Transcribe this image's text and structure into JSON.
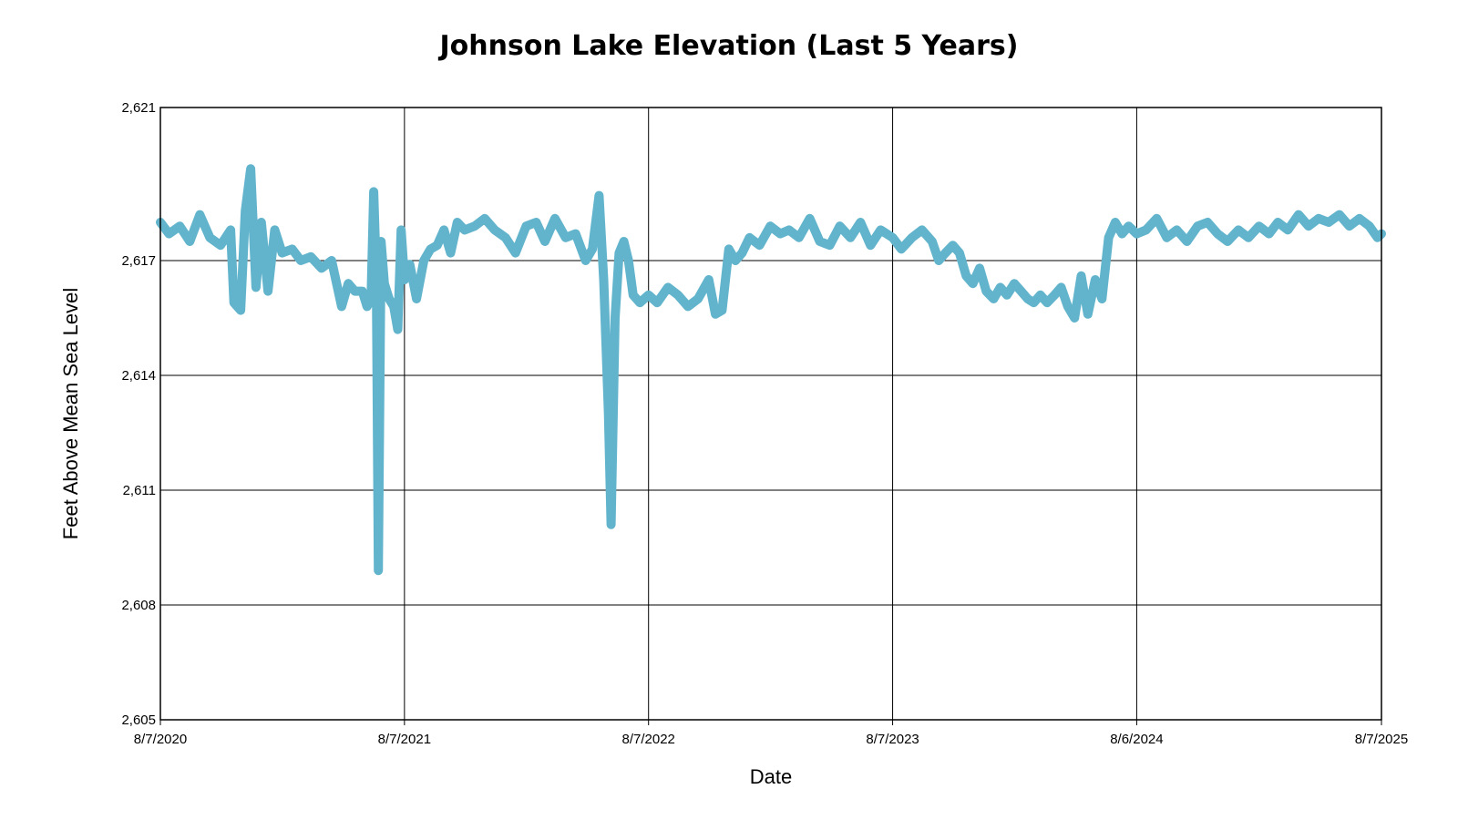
{
  "chart_data": {
    "type": "line",
    "title": "Johnson Lake Elevation (Last 5 Years)",
    "xlabel": "Date",
    "ylabel": "Feet Above Mean Sea Level",
    "xlim": [
      "2020-08-07",
      "2025-08-07"
    ],
    "ylim": [
      2605,
      2621
    ],
    "x_ticks": [
      {
        "date": "2020-08-07",
        "label": "8/7/2020"
      },
      {
        "date": "2021-08-07",
        "label": "8/7/2021"
      },
      {
        "date": "2022-08-07",
        "label": "8/7/2022"
      },
      {
        "date": "2023-08-07",
        "label": "8/7/2023"
      },
      {
        "date": "2024-08-06",
        "label": "8/6/2024"
      },
      {
        "date": "2025-08-07",
        "label": "8/7/2025"
      }
    ],
    "y_ticks": [
      {
        "value": 2605,
        "label": "2,605"
      },
      {
        "value": 2608,
        "label": "2,608"
      },
      {
        "value": 2611,
        "label": "2,611"
      },
      {
        "value": 2614,
        "label": "2,614"
      },
      {
        "value": 2617,
        "label": "2,617"
      },
      {
        "value": 2621,
        "label": "2,621"
      }
    ],
    "grid": true,
    "legend": "none",
    "series": [
      {
        "color": "#62b4cc",
        "points": [
          [
            "2020-08-07",
            2618.0
          ],
          [
            "2020-08-20",
            2617.7
          ],
          [
            "2020-09-05",
            2617.9
          ],
          [
            "2020-09-20",
            2617.5
          ],
          [
            "2020-10-05",
            2618.2
          ],
          [
            "2020-10-20",
            2617.6
          ],
          [
            "2020-11-05",
            2617.4
          ],
          [
            "2020-11-20",
            2617.8
          ],
          [
            "2020-11-25",
            2615.9
          ],
          [
            "2020-12-05",
            2615.7
          ],
          [
            "2020-12-12",
            2618.3
          ],
          [
            "2020-12-20",
            2619.4
          ],
          [
            "2020-12-28",
            2616.3
          ],
          [
            "2021-01-05",
            2618.0
          ],
          [
            "2021-01-15",
            2616.2
          ],
          [
            "2021-01-25",
            2617.8
          ],
          [
            "2021-02-05",
            2617.2
          ],
          [
            "2021-02-20",
            2617.3
          ],
          [
            "2021-03-05",
            2617.0
          ],
          [
            "2021-03-20",
            2617.1
          ],
          [
            "2021-04-05",
            2616.8
          ],
          [
            "2021-04-20",
            2617.0
          ],
          [
            "2021-05-05",
            2615.8
          ],
          [
            "2021-05-15",
            2616.4
          ],
          [
            "2021-05-25",
            2616.2
          ],
          [
            "2021-06-05",
            2616.2
          ],
          [
            "2021-06-12",
            2615.8
          ],
          [
            "2021-06-18",
            2616.0
          ],
          [
            "2021-06-22",
            2618.8
          ],
          [
            "2021-06-26",
            2616.6
          ],
          [
            "2021-06-29",
            2608.9
          ],
          [
            "2021-07-03",
            2617.5
          ],
          [
            "2021-07-08",
            2616.4
          ],
          [
            "2021-07-15",
            2616.0
          ],
          [
            "2021-07-22",
            2615.8
          ],
          [
            "2021-07-28",
            2615.2
          ],
          [
            "2021-08-02",
            2617.8
          ],
          [
            "2021-08-07",
            2616.5
          ],
          [
            "2021-08-15",
            2616.9
          ],
          [
            "2021-08-25",
            2616.0
          ],
          [
            "2021-09-05",
            2617.0
          ],
          [
            "2021-09-15",
            2617.3
          ],
          [
            "2021-09-25",
            2617.4
          ],
          [
            "2021-10-05",
            2617.8
          ],
          [
            "2021-10-15",
            2617.2
          ],
          [
            "2021-10-25",
            2618.0
          ],
          [
            "2021-11-05",
            2617.8
          ],
          [
            "2021-11-20",
            2617.9
          ],
          [
            "2021-12-05",
            2618.1
          ],
          [
            "2021-12-20",
            2617.8
          ],
          [
            "2022-01-05",
            2617.6
          ],
          [
            "2022-01-20",
            2617.2
          ],
          [
            "2022-02-05",
            2617.9
          ],
          [
            "2022-02-20",
            2618.0
          ],
          [
            "2022-03-05",
            2617.5
          ],
          [
            "2022-03-20",
            2618.1
          ],
          [
            "2022-04-05",
            2617.6
          ],
          [
            "2022-04-20",
            2617.7
          ],
          [
            "2022-05-05",
            2617.0
          ],
          [
            "2022-05-15",
            2617.3
          ],
          [
            "2022-05-25",
            2618.7
          ],
          [
            "2022-06-01",
            2616.5
          ],
          [
            "2022-06-08",
            2613.0
          ],
          [
            "2022-06-12",
            2610.1
          ],
          [
            "2022-06-18",
            2615.5
          ],
          [
            "2022-06-24",
            2617.2
          ],
          [
            "2022-07-01",
            2617.5
          ],
          [
            "2022-07-08",
            2617.0
          ],
          [
            "2022-07-15",
            2616.1
          ],
          [
            "2022-07-25",
            2615.9
          ],
          [
            "2022-08-07",
            2616.1
          ],
          [
            "2022-08-20",
            2615.9
          ],
          [
            "2022-09-05",
            2616.3
          ],
          [
            "2022-09-20",
            2616.1
          ],
          [
            "2022-10-05",
            2615.8
          ],
          [
            "2022-10-20",
            2616.0
          ],
          [
            "2022-11-05",
            2616.5
          ],
          [
            "2022-11-15",
            2615.6
          ],
          [
            "2022-11-25",
            2615.7
          ],
          [
            "2022-12-05",
            2617.3
          ],
          [
            "2022-12-15",
            2617.0
          ],
          [
            "2022-12-25",
            2617.2
          ],
          [
            "2023-01-05",
            2617.6
          ],
          [
            "2023-01-20",
            2617.4
          ],
          [
            "2023-02-05",
            2617.9
          ],
          [
            "2023-02-20",
            2617.7
          ],
          [
            "2023-03-05",
            2617.8
          ],
          [
            "2023-03-20",
            2617.6
          ],
          [
            "2023-04-05",
            2618.1
          ],
          [
            "2023-04-20",
            2617.5
          ],
          [
            "2023-05-05",
            2617.4
          ],
          [
            "2023-05-20",
            2617.9
          ],
          [
            "2023-06-05",
            2617.6
          ],
          [
            "2023-06-20",
            2618.0
          ],
          [
            "2023-07-05",
            2617.4
          ],
          [
            "2023-07-20",
            2617.8
          ],
          [
            "2023-08-07",
            2617.6
          ],
          [
            "2023-08-20",
            2617.3
          ],
          [
            "2023-09-05",
            2617.6
          ],
          [
            "2023-09-20",
            2617.8
          ],
          [
            "2023-10-05",
            2617.5
          ],
          [
            "2023-10-15",
            2617.0
          ],
          [
            "2023-10-25",
            2617.2
          ],
          [
            "2023-11-05",
            2617.4
          ],
          [
            "2023-11-15",
            2617.2
          ],
          [
            "2023-11-25",
            2616.6
          ],
          [
            "2023-12-05",
            2616.4
          ],
          [
            "2023-12-15",
            2616.8
          ],
          [
            "2023-12-25",
            2616.2
          ],
          [
            "2024-01-05",
            2616.0
          ],
          [
            "2024-01-15",
            2616.3
          ],
          [
            "2024-01-25",
            2616.1
          ],
          [
            "2024-02-05",
            2616.4
          ],
          [
            "2024-02-15",
            2616.2
          ],
          [
            "2024-02-25",
            2616.0
          ],
          [
            "2024-03-05",
            2615.9
          ],
          [
            "2024-03-15",
            2616.1
          ],
          [
            "2024-03-25",
            2615.9
          ],
          [
            "2024-04-05",
            2616.1
          ],
          [
            "2024-04-15",
            2616.3
          ],
          [
            "2024-04-25",
            2615.8
          ],
          [
            "2024-05-05",
            2615.5
          ],
          [
            "2024-05-15",
            2616.6
          ],
          [
            "2024-05-25",
            2615.6
          ],
          [
            "2024-06-05",
            2616.5
          ],
          [
            "2024-06-15",
            2616.0
          ],
          [
            "2024-06-25",
            2617.6
          ],
          [
            "2024-07-05",
            2618.0
          ],
          [
            "2024-07-15",
            2617.7
          ],
          [
            "2024-07-25",
            2617.9
          ],
          [
            "2024-08-06",
            2617.7
          ],
          [
            "2024-08-20",
            2617.8
          ],
          [
            "2024-09-05",
            2618.1
          ],
          [
            "2024-09-20",
            2617.6
          ],
          [
            "2024-10-05",
            2617.8
          ],
          [
            "2024-10-20",
            2617.5
          ],
          [
            "2024-11-05",
            2617.9
          ],
          [
            "2024-11-20",
            2618.0
          ],
          [
            "2024-12-05",
            2617.7
          ],
          [
            "2024-12-20",
            2617.5
          ],
          [
            "2025-01-05",
            2617.8
          ],
          [
            "2025-01-20",
            2617.6
          ],
          [
            "2025-02-05",
            2617.9
          ],
          [
            "2025-02-20",
            2617.7
          ],
          [
            "2025-03-05",
            2618.0
          ],
          [
            "2025-03-20",
            2617.8
          ],
          [
            "2025-04-05",
            2618.2
          ],
          [
            "2025-04-20",
            2617.9
          ],
          [
            "2025-05-05",
            2618.1
          ],
          [
            "2025-05-20",
            2618.0
          ],
          [
            "2025-06-05",
            2618.2
          ],
          [
            "2025-06-20",
            2617.9
          ],
          [
            "2025-07-05",
            2618.1
          ],
          [
            "2025-07-20",
            2617.9
          ],
          [
            "2025-08-01",
            2617.6
          ],
          [
            "2025-08-07",
            2617.7
          ]
        ]
      }
    ]
  }
}
